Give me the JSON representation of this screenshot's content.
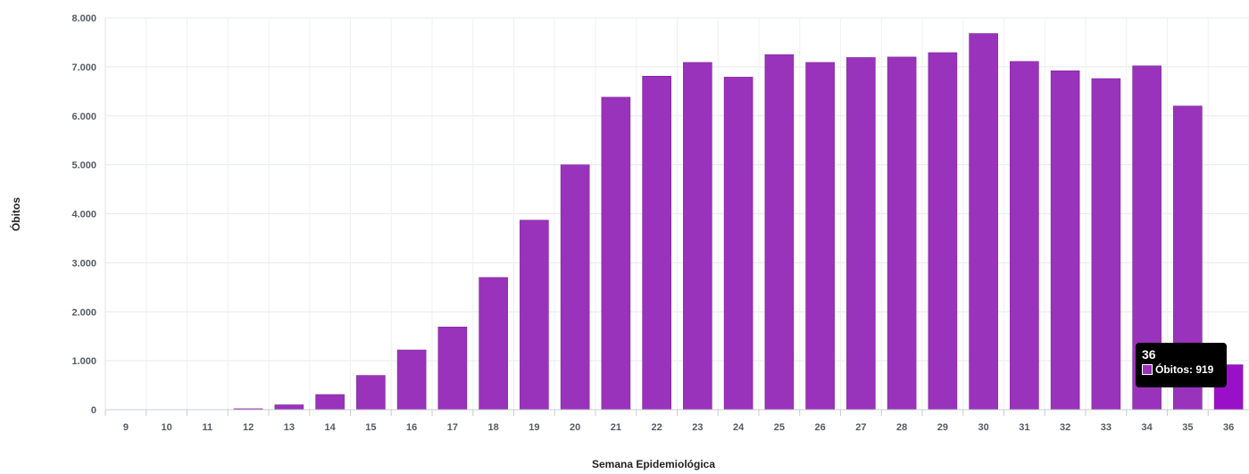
{
  "chart_data": {
    "type": "bar",
    "xlabel": "Semana Epidemiológica",
    "ylabel": "Óbitos",
    "ylim": [
      0,
      8000
    ],
    "yticks": [
      0,
      1000,
      2000,
      3000,
      4000,
      5000,
      6000,
      7000,
      8000
    ],
    "ytick_labels": [
      "0",
      "1.000",
      "2.000",
      "3.000",
      "4.000",
      "5.000",
      "6.000",
      "7.000",
      "8.000"
    ],
    "categories": [
      "9",
      "10",
      "11",
      "12",
      "13",
      "14",
      "15",
      "16",
      "17",
      "18",
      "19",
      "20",
      "21",
      "22",
      "23",
      "24",
      "25",
      "26",
      "27",
      "28",
      "29",
      "30",
      "31",
      "32",
      "33",
      "34",
      "35",
      "36"
    ],
    "series": [
      {
        "name": "Óbitos",
        "values": [
          0,
          0,
          2,
          20,
          100,
          310,
          700,
          1220,
          1690,
          2700,
          3870,
          5000,
          6380,
          6810,
          7090,
          6790,
          7250,
          7090,
          7190,
          7200,
          7290,
          7680,
          7110,
          6920,
          6760,
          7020,
          6200,
          919
        ]
      }
    ],
    "bar_color": "#9933bb",
    "highlight_color": "#9a10c8",
    "grid": true
  },
  "tooltip": {
    "title": "36",
    "label": "Óbitos: 919",
    "swatch_color": "#9b32b8"
  }
}
